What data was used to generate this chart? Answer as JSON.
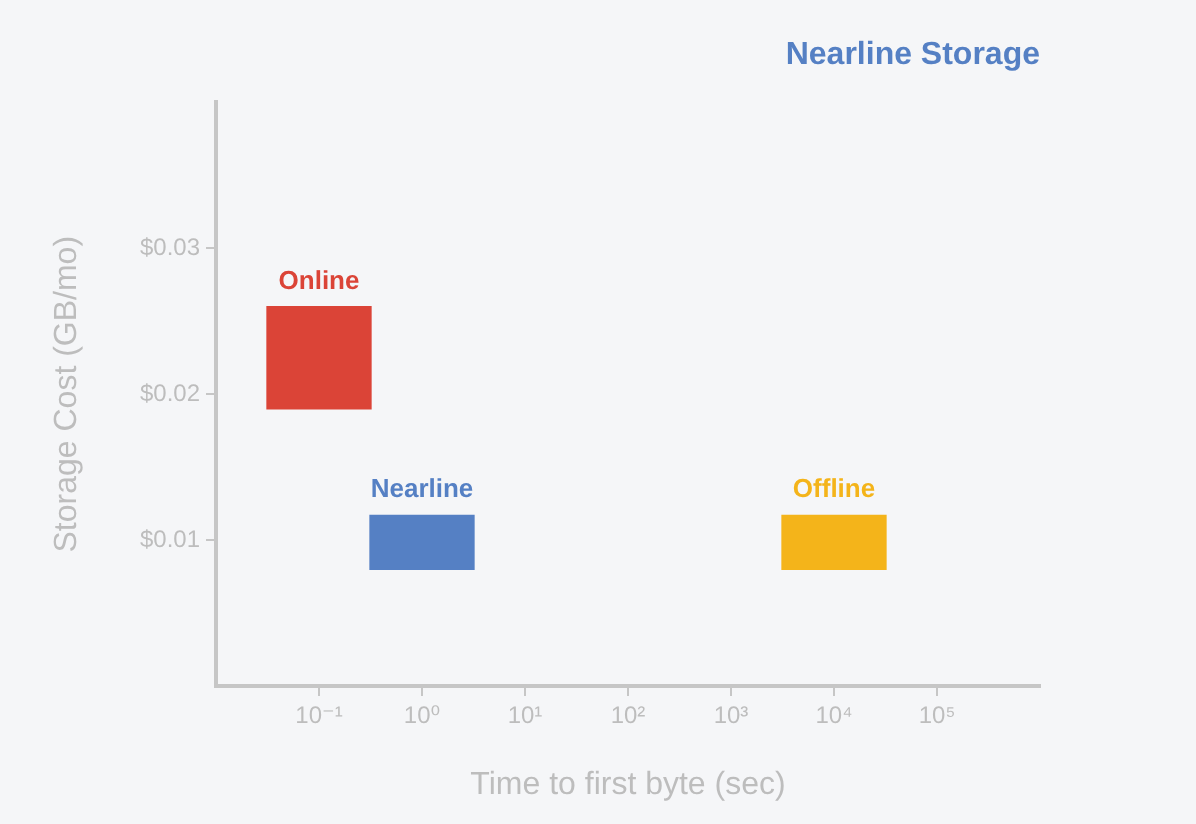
{
  "chart_data": {
    "type": "bar",
    "title": "Nearline Storage",
    "xlabel": "Time to first byte (sec)",
    "ylabel": "Storage Cost (GB/mo)",
    "log": "x",
    "xlim": [
      0.01,
      1000000
    ],
    "xticks": [
      {
        "value": 0.1,
        "label": "10⁻¹"
      },
      {
        "value": 1,
        "label": "10⁰"
      },
      {
        "value": 10,
        "label": "10¹"
      },
      {
        "value": 100,
        "label": "10²"
      },
      {
        "value": 1000,
        "label": "10³"
      },
      {
        "value": 10000,
        "label": "10⁴"
      },
      {
        "value": 100000,
        "label": "10⁵"
      }
    ],
    "ylim": [
      0,
      0.04
    ],
    "yticks": [
      {
        "value": 0.01,
        "label": "$0.01"
      },
      {
        "value": 0.02,
        "label": "$0.02"
      },
      {
        "value": 0.03,
        "label": "$0.03"
      }
    ],
    "series": [
      {
        "name": "Online",
        "color": "#db4437",
        "x": [
          0.1
        ],
        "base": [
          0.019
        ],
        "values": [
          0.007
        ]
      },
      {
        "name": "Nearline",
        "color": "#5580c4",
        "x": [
          1
        ],
        "base": [
          0.008
        ],
        "values": [
          0.0037
        ]
      },
      {
        "name": "Offline",
        "color": "#f4b41a",
        "x": [
          10000
        ],
        "base": [
          0.008
        ],
        "values": [
          0.0037
        ]
      }
    ]
  }
}
